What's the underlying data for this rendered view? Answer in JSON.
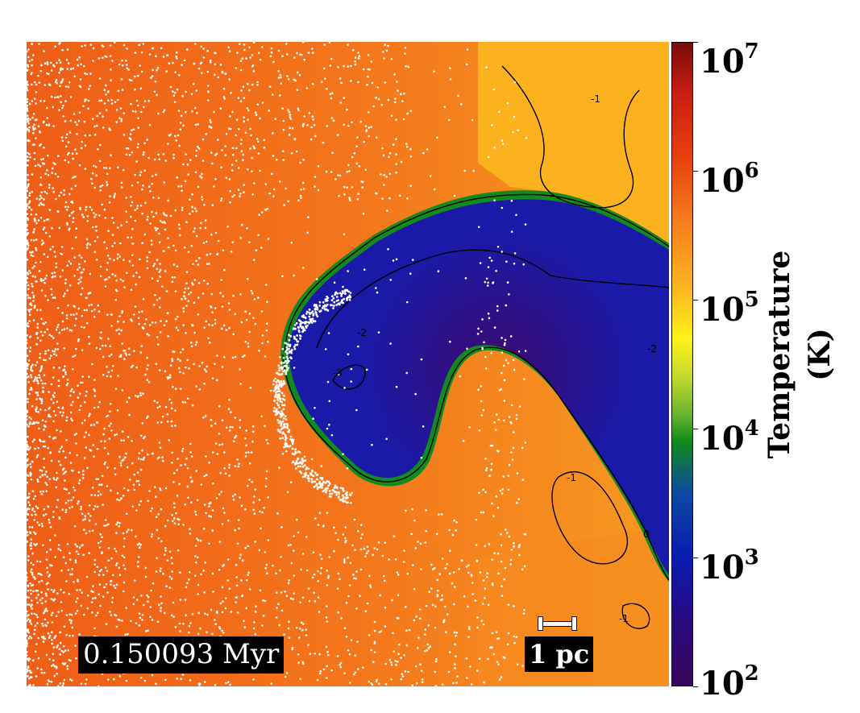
{
  "figure": {
    "timestamp": "0.150093 Myr",
    "scale_bar_label": "1 pc",
    "colorbar": {
      "title": "Temperature (K)",
      "scale": "log",
      "range": [
        100,
        10000000
      ],
      "ticks": [
        {
          "base": "10",
          "exp": "7"
        },
        {
          "base": "10",
          "exp": "6"
        },
        {
          "base": "10",
          "exp": "5"
        },
        {
          "base": "10",
          "exp": "4"
        },
        {
          "base": "10",
          "exp": "3"
        },
        {
          "base": "10",
          "exp": "2"
        }
      ]
    },
    "contour_labels": [
      "-1",
      "-2",
      "-3",
      "-2",
      "-1",
      "-1",
      "0"
    ],
    "colors": {
      "hot_gas": "#f26a1b",
      "warm_gas": "#fbb21e",
      "cold_cloud": "#1a1aa8",
      "cloud_core": "#3b0a6e",
      "cloud_edge": "#138a1e",
      "particles": "#ffffff",
      "contours": "#000000"
    }
  }
}
